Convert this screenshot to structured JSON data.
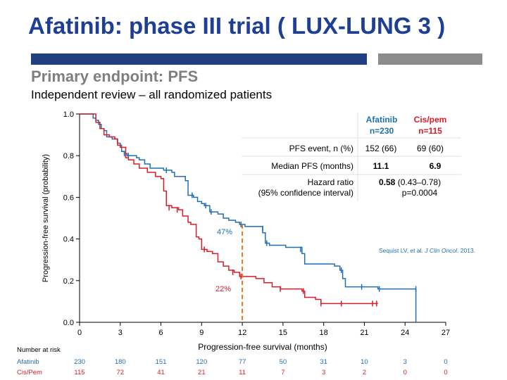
{
  "header": {
    "title": "Afatinib: phase III trial ( LUX-LUNG 3 )",
    "subtitle": "Primary endpoint: PFS",
    "description": "Independent review – all randomized patients"
  },
  "colors": {
    "afatinib": "#1f6fb5",
    "cispem": "#d71e28",
    "marker": "#e8731e",
    "header_bar": "#1f3f80",
    "header_bar_gray": "#8c8c8c",
    "title": "#1f3f94"
  },
  "results_table": {
    "col1": "Afatinib",
    "col1_n": "n=230",
    "col2": "Cis/pem",
    "col2_n": "n=115",
    "rows": [
      {
        "label": "PFS event, n (%)",
        "v1": "152 (66)",
        "v2": "69 (60)"
      },
      {
        "label": "Median PFS (months)",
        "v1": "11.1",
        "v2": "6.9"
      }
    ],
    "hr_label1": "Hazard ratio",
    "hr_label2": "(95% confidence interval)",
    "hr_value": "0.58",
    "hr_ci": " (0.43–0.78)",
    "hr_p": "p=0.0004"
  },
  "citation_prefix": "Sequist LV, et al. ",
  "citation_journal": "J Clin Oncol",
  "citation_suffix": ". 2013.",
  "annotations": {
    "afatinib_pct": "47%",
    "cispem_pct": "22%",
    "time": 12
  },
  "risk_table": {
    "header": "Number at risk",
    "rows": [
      {
        "label": "Afatinib",
        "values": [
          "230",
          "180",
          "151",
          "120",
          "77",
          "50",
          "31",
          "10",
          "3",
          "0"
        ]
      },
      {
        "label": "Cis/Pem",
        "values": [
          "115",
          "72",
          "41",
          "21",
          "11",
          "7",
          "3",
          "2",
          "0",
          "0"
        ]
      }
    ]
  },
  "chart_data": {
    "type": "line",
    "xlabel": "Progression-free survival (months)",
    "ylabel": "Progression-free survival (probability)",
    "xlim": [
      0,
      27
    ],
    "ylim": [
      0,
      1
    ],
    "xticks": [
      "0",
      "3",
      "6",
      "9",
      "12",
      "15",
      "18",
      "21",
      "24",
      "27"
    ],
    "yticks": [
      "0.0",
      "0.2",
      "0.4",
      "0.6",
      "0.8",
      "1.0"
    ],
    "grid": false,
    "series": [
      {
        "name": "Afatinib",
        "color": "#1f6fb5",
        "steps": [
          [
            0,
            1
          ],
          [
            1,
            0.98
          ],
          [
            1.2,
            0.97
          ],
          [
            1.4,
            0.95
          ],
          [
            1.6,
            0.93
          ],
          [
            1.8,
            0.92
          ],
          [
            2.0,
            0.89
          ],
          [
            2.4,
            0.88
          ],
          [
            2.8,
            0.86
          ],
          [
            3.0,
            0.85
          ],
          [
            3.1,
            0.82
          ],
          [
            3.3,
            0.81
          ],
          [
            3.5,
            0.8
          ],
          [
            3.9,
            0.8
          ],
          [
            4.2,
            0.79
          ],
          [
            4.4,
            0.78
          ],
          [
            4.8,
            0.76
          ],
          [
            5.2,
            0.74
          ],
          [
            5.6,
            0.74
          ],
          [
            6.2,
            0.73
          ],
          [
            6.8,
            0.72
          ],
          [
            7.0,
            0.7
          ],
          [
            7.6,
            0.7
          ],
          [
            7.8,
            0.68
          ],
          [
            8.0,
            0.61
          ],
          [
            8.4,
            0.6
          ],
          [
            8.7,
            0.58
          ],
          [
            9.0,
            0.57
          ],
          [
            9.2,
            0.56
          ],
          [
            9.6,
            0.53
          ],
          [
            10.2,
            0.52
          ],
          [
            10.6,
            0.5
          ],
          [
            11.0,
            0.49
          ],
          [
            11.5,
            0.48
          ],
          [
            11.8,
            0.47
          ],
          [
            12.2,
            0.46
          ],
          [
            13.2,
            0.46
          ],
          [
            13.5,
            0.43
          ],
          [
            13.7,
            0.38
          ],
          [
            14.0,
            0.37
          ],
          [
            15.2,
            0.36
          ],
          [
            16.2,
            0.36
          ],
          [
            16.4,
            0.33
          ],
          [
            16.6,
            0.28
          ],
          [
            17.0,
            0.28
          ],
          [
            18.2,
            0.28
          ],
          [
            18.8,
            0.27
          ],
          [
            19.2,
            0.25
          ],
          [
            19.4,
            0.21
          ],
          [
            19.6,
            0.17
          ],
          [
            21.0,
            0.17
          ],
          [
            22.0,
            0.16
          ],
          [
            24.0,
            0.16
          ],
          [
            24.8,
            0.16
          ]
        ],
        "end": 24.8,
        "drop_to_zero": true,
        "censors": [
          [
            3.3,
            0.81
          ],
          [
            3.6,
            0.8
          ],
          [
            6.4,
            0.73
          ],
          [
            8.3,
            0.61
          ],
          [
            9.3,
            0.56
          ],
          [
            9.7,
            0.53
          ],
          [
            11.9,
            0.47
          ],
          [
            13.5,
            0.45
          ],
          [
            13.8,
            0.38
          ],
          [
            16.3,
            0.35
          ],
          [
            19.3,
            0.25
          ],
          [
            20.8,
            0.17
          ],
          [
            22.1,
            0.16
          ],
          [
            24.8,
            0.16
          ]
        ]
      },
      {
        "name": "Cis/Pem",
        "color": "#d71e28",
        "steps": [
          [
            0,
            1
          ],
          [
            1.2,
            0.96
          ],
          [
            1.5,
            0.93
          ],
          [
            1.8,
            0.9
          ],
          [
            2.2,
            0.89
          ],
          [
            2.6,
            0.88
          ],
          [
            2.8,
            0.85
          ],
          [
            3.0,
            0.84
          ],
          [
            3.4,
            0.79
          ],
          [
            3.6,
            0.78
          ],
          [
            4.0,
            0.76
          ],
          [
            4.4,
            0.74
          ],
          [
            5.0,
            0.72
          ],
          [
            5.6,
            0.7
          ],
          [
            6.0,
            0.69
          ],
          [
            6.2,
            0.63
          ],
          [
            6.4,
            0.56
          ],
          [
            6.8,
            0.55
          ],
          [
            7.3,
            0.54
          ],
          [
            7.6,
            0.51
          ],
          [
            8.0,
            0.48
          ],
          [
            8.2,
            0.47
          ],
          [
            8.6,
            0.41
          ],
          [
            8.8,
            0.4
          ],
          [
            9.0,
            0.35
          ],
          [
            9.4,
            0.34
          ],
          [
            9.8,
            0.33
          ],
          [
            10.2,
            0.29
          ],
          [
            10.6,
            0.27
          ],
          [
            11.0,
            0.25
          ],
          [
            11.4,
            0.24
          ],
          [
            11.8,
            0.22
          ],
          [
            13.0,
            0.21
          ],
          [
            13.6,
            0.19
          ],
          [
            14.2,
            0.17
          ],
          [
            14.8,
            0.16
          ],
          [
            16.4,
            0.15
          ],
          [
            16.6,
            0.12
          ],
          [
            17.4,
            0.11
          ],
          [
            17.8,
            0.09
          ],
          [
            22.0,
            0.09
          ]
        ],
        "end": 22.0,
        "drop_to_zero": false,
        "censors": [
          [
            6.6,
            0.55
          ],
          [
            7.2,
            0.54
          ],
          [
            9.2,
            0.35
          ],
          [
            11.3,
            0.24
          ],
          [
            11.9,
            0.22
          ],
          [
            14.8,
            0.16
          ],
          [
            16.5,
            0.15
          ],
          [
            17.8,
            0.09
          ],
          [
            19.3,
            0.09
          ],
          [
            21.6,
            0.09
          ],
          [
            21.9,
            0.09
          ]
        ]
      }
    ]
  }
}
